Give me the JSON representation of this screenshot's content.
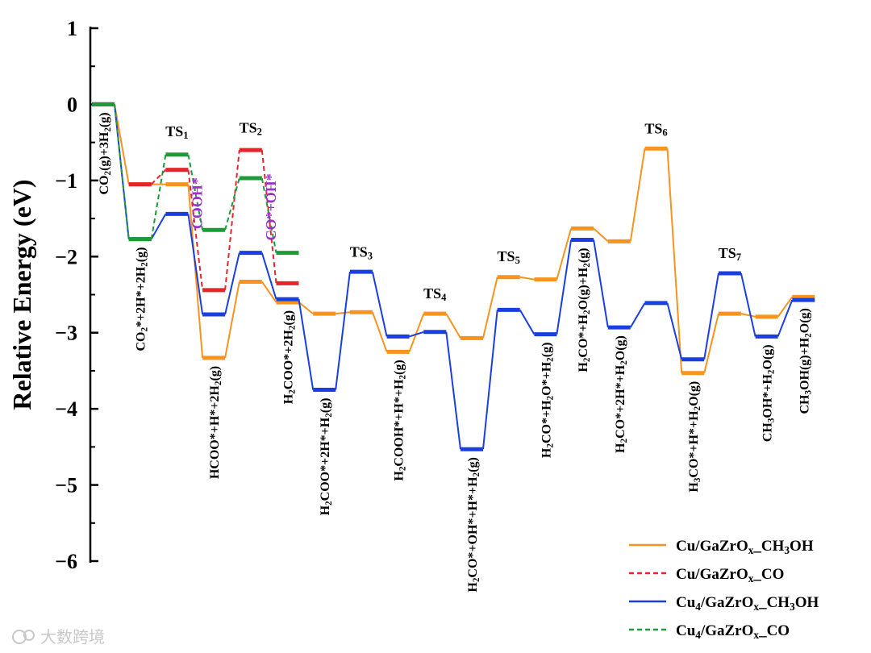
{
  "chart_data": {
    "type": "line",
    "ylabel": "Relative Energy (eV)",
    "ylim": [
      -6,
      1
    ],
    "yticks": [
      1,
      0,
      -1,
      -2,
      -3,
      -4,
      -5,
      -6
    ],
    "ytick_labels": [
      "1",
      "0",
      "−1",
      "−2",
      "−3",
      "−4",
      "−5",
      "−6"
    ],
    "x_positions": [
      1,
      2,
      3,
      4,
      5,
      6,
      7,
      8,
      9,
      10,
      11,
      12,
      13,
      14,
      15,
      16,
      17,
      18,
      19,
      20,
      21,
      22,
      23,
      24
    ],
    "state_labels": [
      {
        "x": 1,
        "parts": [
          {
            "t": "CO"
          },
          {
            "t": "2",
            "s": "sub"
          },
          {
            "t": "(g)+3H"
          },
          {
            "t": "2",
            "s": "sub"
          },
          {
            "t": "(g)"
          }
        ]
      },
      {
        "x": 2,
        "parts": [
          {
            "t": "CO"
          },
          {
            "t": "2",
            "s": "sub"
          },
          {
            "t": "*+2H*+2H"
          },
          {
            "t": "2",
            "s": "sub"
          },
          {
            "t": "(g)"
          }
        ]
      },
      {
        "x": 4,
        "parts": [
          {
            "t": "HCOO*+H*+2H"
          },
          {
            "t": "2",
            "s": "sub"
          },
          {
            "t": "(g)"
          }
        ]
      },
      {
        "x": 6,
        "parts": [
          {
            "t": "H"
          },
          {
            "t": "2",
            "s": "sub"
          },
          {
            "t": "COO*+2H"
          },
          {
            "t": "2",
            "s": "sub"
          },
          {
            "t": "(g)"
          }
        ]
      },
      {
        "x": 7,
        "parts": [
          {
            "t": "H"
          },
          {
            "t": "2",
            "s": "sub"
          },
          {
            "t": "COO*+2H*+H"
          },
          {
            "t": "2",
            "s": "sub"
          },
          {
            "t": "(g)"
          }
        ]
      },
      {
        "x": 9,
        "parts": [
          {
            "t": "H"
          },
          {
            "t": "2",
            "s": "sub"
          },
          {
            "t": "COOH*+H*+H"
          },
          {
            "t": "2",
            "s": "sub"
          },
          {
            "t": "(g)"
          }
        ]
      },
      {
        "x": 11,
        "parts": [
          {
            "t": "H"
          },
          {
            "t": "2",
            "s": "sub"
          },
          {
            "t": "CO*+OH*+H*+H"
          },
          {
            "t": "2",
            "s": "sub"
          },
          {
            "t": "(g)"
          }
        ]
      },
      {
        "x": 13,
        "parts": [
          {
            "t": "H"
          },
          {
            "t": "2",
            "s": "sub"
          },
          {
            "t": "CO*+H"
          },
          {
            "t": "2",
            "s": "sub"
          },
          {
            "t": "O*+H"
          },
          {
            "t": "2",
            "s": "sub"
          },
          {
            "t": "(g)"
          }
        ]
      },
      {
        "x": 14,
        "parts": [
          {
            "t": "H"
          },
          {
            "t": "2",
            "s": "sub"
          },
          {
            "t": "CO*+H"
          },
          {
            "t": "2",
            "s": "sub"
          },
          {
            "t": "O(g)+H"
          },
          {
            "t": "2",
            "s": "sub"
          },
          {
            "t": "(g)"
          }
        ]
      },
      {
        "x": 15,
        "parts": [
          {
            "t": "H"
          },
          {
            "t": "2",
            "s": "sub"
          },
          {
            "t": "CO*+2H*+H"
          },
          {
            "t": "2",
            "s": "sub"
          },
          {
            "t": "O(g)"
          }
        ]
      },
      {
        "x": 17,
        "parts": [
          {
            "t": "H"
          },
          {
            "t": "3",
            "s": "sub"
          },
          {
            "t": "CO*+H*+H"
          },
          {
            "t": "2",
            "s": "sub"
          },
          {
            "t": "O(g)"
          }
        ]
      },
      {
        "x": 19,
        "parts": [
          {
            "t": "CH"
          },
          {
            "t": "3",
            "s": "sub"
          },
          {
            "t": "OH*+H"
          },
          {
            "t": "2",
            "s": "sub"
          },
          {
            "t": "O(g)"
          }
        ]
      },
      {
        "x": 20,
        "parts": [
          {
            "t": "CH"
          },
          {
            "t": "3",
            "s": "sub"
          },
          {
            "t": "OH(g)+H"
          },
          {
            "t": "2",
            "s": "sub"
          },
          {
            "t": "O(g)"
          }
        ]
      }
    ],
    "ts_labels": [
      {
        "x": 3,
        "y": -0.42,
        "parts": [
          {
            "t": "TS"
          },
          {
            "t": "1",
            "s": "sub"
          }
        ]
      },
      {
        "x": 5,
        "y": -0.37,
        "parts": [
          {
            "t": "TS"
          },
          {
            "t": "2",
            "s": "sub"
          }
        ]
      },
      {
        "x": 8,
        "y": -2.0,
        "parts": [
          {
            "t": "TS"
          },
          {
            "t": "3",
            "s": "sub"
          }
        ]
      },
      {
        "x": 10,
        "y": -2.55,
        "parts": [
          {
            "t": "TS"
          },
          {
            "t": "4",
            "s": "sub"
          }
        ]
      },
      {
        "x": 12,
        "y": -2.06,
        "parts": [
          {
            "t": "TS"
          },
          {
            "t": "5",
            "s": "sub"
          }
        ]
      },
      {
        "x": 16,
        "y": -0.38,
        "parts": [
          {
            "t": "TS"
          },
          {
            "t": "6",
            "s": "sub"
          }
        ]
      },
      {
        "x": 18,
        "y": -2.02,
        "parts": [
          {
            "t": "TS"
          },
          {
            "t": "7",
            "s": "sub"
          }
        ]
      }
    ],
    "annotations": [
      {
        "text": "COOH*",
        "x": 3.55,
        "y": -1.3
      },
      {
        "text": "CO*+OH*",
        "x": 5.55,
        "y": -1.35
      }
    ],
    "series": [
      {
        "name": "Cu/GaZrOₓ_CH₃OH",
        "name_parts": [
          {
            "t": "Cu/GaZrO"
          },
          {
            "t": "x",
            "s": "sub"
          },
          {
            "t": "_CH"
          },
          {
            "t": "3",
            "s": "sub"
          },
          {
            "t": "OH"
          }
        ],
        "color": "#f7931e",
        "dash": false,
        "points": [
          [
            1,
            0.0
          ],
          [
            2,
            -1.05
          ],
          [
            3,
            -1.05
          ],
          [
            4,
            -3.33
          ],
          [
            5,
            -2.33
          ],
          [
            6,
            -2.6
          ],
          [
            7,
            -2.75
          ],
          [
            8,
            -2.73
          ],
          [
            9,
            -3.25
          ],
          [
            10,
            -2.75
          ],
          [
            11,
            -3.07
          ],
          [
            12,
            -2.27
          ],
          [
            13,
            -2.3
          ],
          [
            14,
            -1.63
          ],
          [
            15,
            -1.8
          ],
          [
            16,
            -0.58
          ],
          [
            17,
            -3.53
          ],
          [
            18,
            -2.75
          ],
          [
            19,
            -2.79
          ],
          [
            20,
            -2.53
          ]
        ]
      },
      {
        "name": "Cu/GaZrOₓ_CO",
        "name_parts": [
          {
            "t": "Cu/GaZrO"
          },
          {
            "t": "x",
            "s": "sub"
          },
          {
            "t": "_CO"
          }
        ],
        "color": "#e3262b",
        "dash": true,
        "points": [
          [
            2,
            -1.05
          ],
          [
            3,
            -0.86
          ],
          [
            4,
            -2.44
          ],
          [
            5,
            -0.6
          ],
          [
            6,
            -2.35
          ]
        ]
      },
      {
        "name": "Cu₄/GaZrOₓ_CH₃OH",
        "name_parts": [
          {
            "t": "Cu"
          },
          {
            "t": "4",
            "s": "sub"
          },
          {
            "t": "/GaZrO"
          },
          {
            "t": "x",
            "s": "sub"
          },
          {
            "t": "_CH"
          },
          {
            "t": "3",
            "s": "sub"
          },
          {
            "t": "OH"
          }
        ],
        "color": "#1a3fe0",
        "dash": false,
        "points": [
          [
            1,
            0.0
          ],
          [
            2,
            -1.77
          ],
          [
            3,
            -1.44
          ],
          [
            4,
            -2.76
          ],
          [
            5,
            -1.95
          ],
          [
            6,
            -2.56
          ],
          [
            7,
            -3.75
          ],
          [
            8,
            -2.2
          ],
          [
            9,
            -3.05
          ],
          [
            10,
            -2.99
          ],
          [
            11,
            -4.53
          ],
          [
            12,
            -2.7
          ],
          [
            13,
            -3.02
          ],
          [
            14,
            -1.78
          ],
          [
            15,
            -2.93
          ],
          [
            16,
            -2.61
          ],
          [
            17,
            -3.35
          ],
          [
            18,
            -2.22
          ],
          [
            19,
            -3.05
          ],
          [
            20,
            -2.57
          ]
        ]
      },
      {
        "name": "Cu₄/GaZrOₓ_CO",
        "name_parts": [
          {
            "t": "Cu"
          },
          {
            "t": "4",
            "s": "sub"
          },
          {
            "t": "/GaZrO"
          },
          {
            "t": "x",
            "s": "sub"
          },
          {
            "t": "_CO"
          }
        ],
        "color": "#1f9a3a",
        "dash": true,
        "points": [
          [
            1,
            0.0
          ],
          [
            2,
            -1.77
          ],
          [
            3,
            -0.66
          ],
          [
            4,
            -1.65
          ],
          [
            5,
            -0.97
          ],
          [
            6,
            -1.95
          ]
        ]
      }
    ],
    "legend_placement": "bottom-right",
    "watermark": "大数跨境"
  }
}
